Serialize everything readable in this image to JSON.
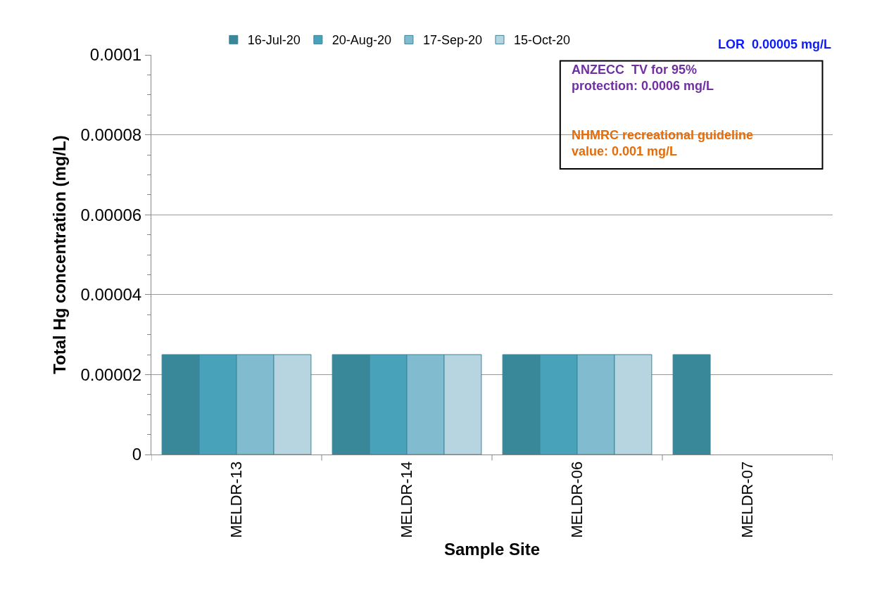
{
  "chart_data": {
    "type": "bar",
    "xlabel": "Sample Site",
    "ylabel": "Total Hg concentration (mg/L)",
    "categories": [
      "MELDR-13",
      "MELDR-14",
      "MELDR-06",
      "MELDR-07"
    ],
    "series": [
      {
        "name": "16-Jul-20",
        "color": "#38889a",
        "values": [
          2.5e-05,
          2.5e-05,
          2.5e-05,
          2.5e-05
        ]
      },
      {
        "name": "20-Aug-20",
        "color": "#48a2ba",
        "values": [
          2.5e-05,
          2.5e-05,
          2.5e-05,
          null
        ]
      },
      {
        "name": "17-Sep-20",
        "color": "#80bbd0",
        "values": [
          2.5e-05,
          2.5e-05,
          2.5e-05,
          null
        ]
      },
      {
        "name": "15-Oct-20",
        "color": "#b7d5e0",
        "values": [
          2.5e-05,
          2.5e-05,
          2.5e-05,
          null
        ]
      }
    ],
    "ylim": [
      0,
      0.0001
    ],
    "yticks": [
      {
        "value": 0,
        "label": "0"
      },
      {
        "value": 2e-05,
        "label": "0.00002"
      },
      {
        "value": 4e-05,
        "label": "0.00004"
      },
      {
        "value": 6e-05,
        "label": "0.00006"
      },
      {
        "value": 8e-05,
        "label": "0.00008"
      },
      {
        "value": 0.0001,
        "label": "0.0001"
      }
    ],
    "grid": "y",
    "legend": "top",
    "annotations": [
      "LOR  0.00005 mg/L",
      "ANZECC  TV for 95%\nprotection: 0.0006 mg/L",
      "NHMRC recreational guideline\nvalue: 0.001 mg/L"
    ]
  }
}
